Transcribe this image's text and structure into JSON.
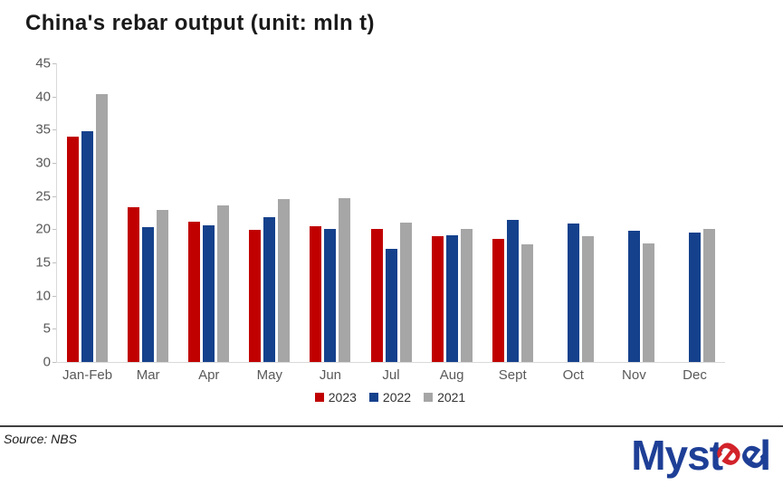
{
  "title": "China's rebar output (unit: mln t)",
  "source": "Source: NBS",
  "logo": {
    "prefix": "Myst",
    "e1": "e",
    "e2": "e",
    "suffix": "l"
  },
  "colors": {
    "bar_2023": "#c00000",
    "bar_2022": "#15418c",
    "bar_2021": "#a6a6a6",
    "axis_text": "#595959",
    "axis_line": "#d9d9d9",
    "legend_text": "#333333",
    "title_text": "#1a1a1a",
    "logo_blue": "#1e3f96",
    "logo_red": "#d2232a"
  },
  "chart_data": {
    "type": "bar",
    "title": "China's rebar output (unit: mln t)",
    "xlabel": "",
    "ylabel": "",
    "ylim": [
      0,
      45
    ],
    "yticks": [
      0,
      5,
      10,
      15,
      20,
      25,
      30,
      35,
      40,
      45
    ],
    "grid": false,
    "legend_position": "bottom",
    "categories": [
      "Jan-Feb",
      "Mar",
      "Apr",
      "May",
      "Jun",
      "Jul",
      "Aug",
      "Sept",
      "Oct",
      "Nov",
      "Dec"
    ],
    "series": [
      {
        "name": "2023",
        "color": "#c00000",
        "values": [
          33.9,
          23.3,
          21.1,
          19.9,
          20.5,
          20.1,
          18.9,
          18.6,
          null,
          null,
          null
        ]
      },
      {
        "name": "2022",
        "color": "#15418c",
        "values": [
          34.8,
          20.3,
          20.6,
          21.8,
          20.0,
          17.1,
          19.1,
          21.4,
          20.9,
          19.8,
          19.5
        ]
      },
      {
        "name": "2021",
        "color": "#a6a6a6",
        "values": [
          40.4,
          22.9,
          23.6,
          24.6,
          24.7,
          21.0,
          20.0,
          17.7,
          19.0,
          17.8,
          20.1
        ]
      }
    ]
  }
}
